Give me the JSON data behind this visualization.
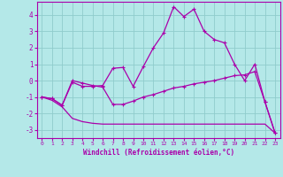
{
  "background_color": "#b4e8e8",
  "grid_color": "#90cccc",
  "line_color": "#aa00aa",
  "xlabel": "Windchill (Refroidissement éolien,°C)",
  "ylim": [
    -3.5,
    4.8
  ],
  "xlim": [
    -0.5,
    23.5
  ],
  "yticks": [
    -3,
    -2,
    -1,
    0,
    1,
    2,
    3,
    4
  ],
  "xticks": [
    0,
    1,
    2,
    3,
    4,
    5,
    6,
    7,
    8,
    9,
    10,
    11,
    12,
    13,
    14,
    15,
    16,
    17,
    18,
    19,
    20,
    21,
    22,
    23
  ],
  "curve1_x": [
    0,
    1,
    2,
    3,
    4,
    5,
    6,
    7,
    8,
    9,
    10,
    11,
    12,
    13,
    14,
    15,
    16,
    17,
    18,
    19,
    20,
    21,
    22,
    23
  ],
  "curve1_y": [
    -1.0,
    -1.1,
    -1.5,
    -0.1,
    -0.35,
    -0.35,
    -0.3,
    0.75,
    0.8,
    -0.35,
    0.85,
    2.0,
    2.9,
    4.5,
    3.9,
    4.35,
    3.0,
    2.5,
    2.3,
    1.0,
    0.0,
    1.0,
    -1.3,
    -3.2
  ],
  "curve2_x": [
    0,
    1,
    2,
    3,
    4,
    5,
    6,
    7,
    8,
    9,
    10,
    11,
    12,
    13,
    14,
    15,
    16,
    17,
    18,
    19,
    20,
    21,
    22,
    23
  ],
  "curve2_y": [
    -1.0,
    -1.1,
    -1.5,
    0.0,
    -0.15,
    -0.3,
    -0.4,
    -1.45,
    -1.45,
    -1.25,
    -1.0,
    -0.85,
    -0.65,
    -0.45,
    -0.35,
    -0.2,
    -0.1,
    0.0,
    0.15,
    0.3,
    0.35,
    0.55,
    -1.3,
    -3.2
  ],
  "curve3_x": [
    0,
    1,
    2,
    3,
    4,
    5,
    6,
    7,
    8,
    9,
    10,
    11,
    12,
    13,
    14,
    15,
    16,
    17,
    18,
    19,
    20,
    21,
    22,
    23
  ],
  "curve3_y": [
    -1.0,
    -1.2,
    -1.6,
    -2.3,
    -2.5,
    -2.6,
    -2.65,
    -2.65,
    -2.65,
    -2.65,
    -2.65,
    -2.65,
    -2.65,
    -2.65,
    -2.65,
    -2.65,
    -2.65,
    -2.65,
    -2.65,
    -2.65,
    -2.65,
    -2.65,
    -2.65,
    -3.2
  ]
}
